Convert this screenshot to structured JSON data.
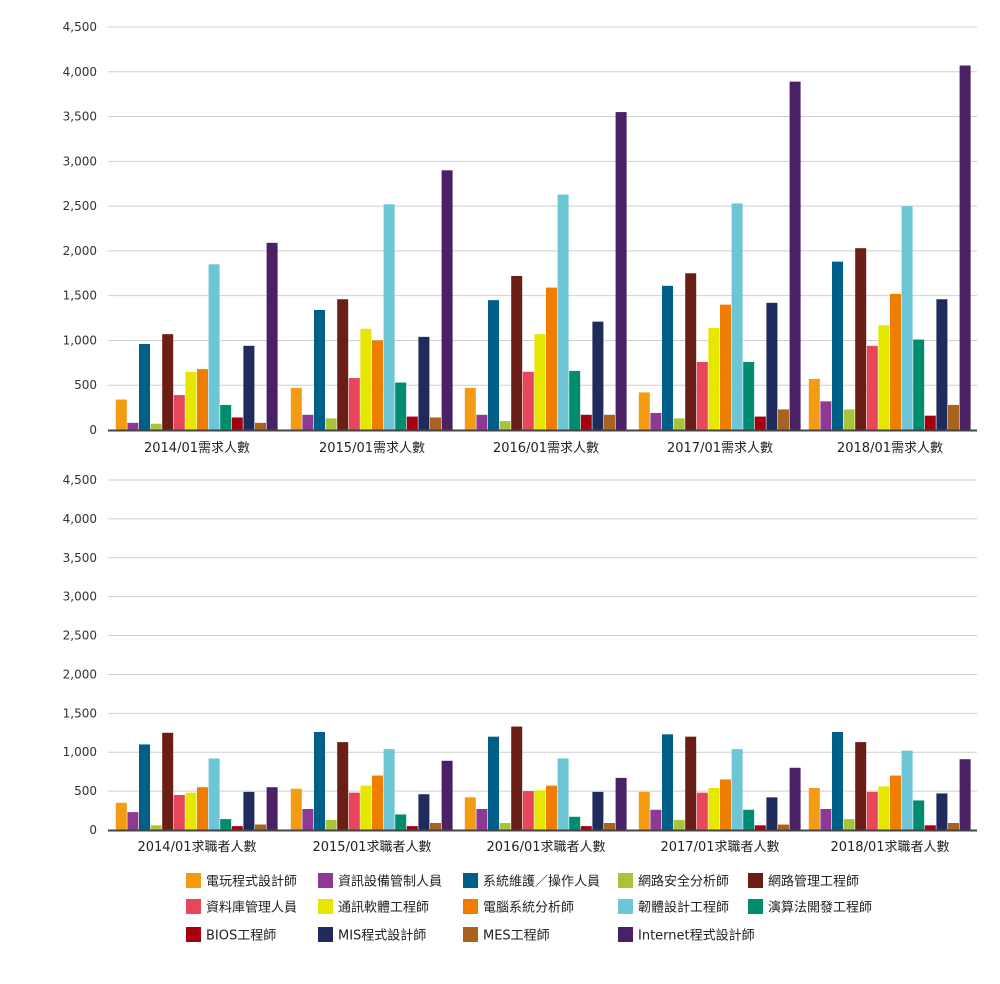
{
  "chart_data": [
    {
      "type": "bar",
      "categories": [
        "2014/01需求人數",
        "2015/01需求人數",
        "2016/01需求人數",
        "2017/01需求人數",
        "2018/01需求人數"
      ],
      "ylim": [
        0,
        4500
      ],
      "yticks": [
        0,
        500,
        1000,
        1500,
        2000,
        2500,
        3000,
        3500,
        4000,
        4500
      ],
      "ytick_labels": [
        "0",
        "500",
        "1,000",
        "1,500",
        "2,000",
        "2,500",
        "3,000",
        "3,500",
        "4,000",
        "4,500"
      ],
      "grid": true,
      "series": [
        {
          "name": "電玩程式設計師",
          "values": [
            340,
            470,
            470,
            420,
            570
          ]
        },
        {
          "name": "資訊設備管制人員",
          "values": [
            80,
            170,
            170,
            190,
            320
          ]
        },
        {
          "name": "系統維護／操作人員",
          "values": [
            960,
            1340,
            1450,
            1610,
            1880
          ]
        },
        {
          "name": "網路安全分析師",
          "values": [
            70,
            130,
            100,
            130,
            230
          ]
        },
        {
          "name": "網路管理工程師",
          "values": [
            1070,
            1460,
            1720,
            1750,
            2030
          ]
        },
        {
          "name": "資料庫管理人員",
          "values": [
            390,
            580,
            650,
            760,
            940
          ]
        },
        {
          "name": "通訊軟體工程師",
          "values": [
            650,
            1130,
            1070,
            1140,
            1170
          ]
        },
        {
          "name": "電腦系統分析師",
          "values": [
            680,
            1000,
            1590,
            1400,
            1520
          ]
        },
        {
          "name": "韌體設計工程師",
          "values": [
            1850,
            2520,
            2630,
            2530,
            2500
          ]
        },
        {
          "name": "演算法開發工程師",
          "values": [
            280,
            530,
            660,
            760,
            1010
          ]
        },
        {
          "name": "BIOS工程師",
          "values": [
            140,
            150,
            170,
            150,
            160
          ]
        },
        {
          "name": "MIS程式設計師",
          "values": [
            940,
            1040,
            1210,
            1420,
            1460
          ]
        },
        {
          "name": "MES工程師",
          "values": [
            80,
            140,
            170,
            230,
            280
          ]
        },
        {
          "name": "Internet程式設計師",
          "values": [
            2090,
            2900,
            3550,
            3890,
            4070
          ]
        }
      ]
    },
    {
      "type": "bar",
      "categories": [
        "2014/01求職者人數",
        "2015/01求職者人數",
        "2016/01求職者人數",
        "2017/01求職者人數",
        "2018/01求職者人數"
      ],
      "ylim": [
        0,
        4500
      ],
      "yticks": [
        0,
        500,
        1000,
        1500,
        2000,
        2500,
        3000,
        3500,
        4000,
        4500
      ],
      "ytick_labels": [
        "0",
        "500",
        "1,000",
        "1,500",
        "2,000",
        "2,500",
        "3,000",
        "3,500",
        "4,000",
        "4,500"
      ],
      "grid": true,
      "series": [
        {
          "name": "電玩程式設計師",
          "values": [
            350,
            530,
            420,
            490,
            540
          ]
        },
        {
          "name": "資訊設備管制人員",
          "values": [
            230,
            270,
            270,
            260,
            270
          ]
        },
        {
          "name": "系統維護／操作人員",
          "values": [
            1100,
            1260,
            1200,
            1230,
            1260
          ]
        },
        {
          "name": "網路安全分析師",
          "values": [
            60,
            130,
            90,
            130,
            140
          ]
        },
        {
          "name": "網路管理工程師",
          "values": [
            1250,
            1130,
            1330,
            1200,
            1130
          ]
        },
        {
          "name": "資料庫管理人員",
          "values": [
            450,
            480,
            500,
            480,
            490
          ]
        },
        {
          "name": "通訊軟體工程師",
          "values": [
            480,
            570,
            510,
            540,
            560
          ]
        },
        {
          "name": "電腦系統分析師",
          "values": [
            550,
            700,
            570,
            650,
            700
          ]
        },
        {
          "name": "韌體設計工程師",
          "values": [
            920,
            1040,
            920,
            1040,
            1020
          ]
        },
        {
          "name": "演算法開發工程師",
          "values": [
            140,
            200,
            170,
            260,
            380
          ]
        },
        {
          "name": "BIOS工程師",
          "values": [
            50,
            50,
            50,
            60,
            60
          ]
        },
        {
          "name": "MIS程式設計師",
          "values": [
            490,
            460,
            490,
            420,
            470
          ]
        },
        {
          "name": "MES工程師",
          "values": [
            70,
            90,
            90,
            70,
            90
          ]
        },
        {
          "name": "Internet程式設計師",
          "values": [
            550,
            890,
            670,
            800,
            910
          ]
        }
      ]
    }
  ],
  "legend": {
    "placement": "bottom",
    "items": [
      {
        "label": "電玩程式設計師",
        "color": "#F39C12"
      },
      {
        "label": "資訊設備管制人員",
        "color": "#8E3A92"
      },
      {
        "label": "系統維護／操作人員",
        "color": "#005F87"
      },
      {
        "label": "網路安全分析師",
        "color": "#A8C43A"
      },
      {
        "label": "網路管理工程師",
        "color": "#6B1E15"
      },
      {
        "label": "資料庫管理人員",
        "color": "#E8465A"
      },
      {
        "label": "通訊軟體工程師",
        "color": "#E6E600"
      },
      {
        "label": "電腦系統分析師",
        "color": "#EF7D00"
      },
      {
        "label": "韌體設計工程師",
        "color": "#6CC6D6"
      },
      {
        "label": "演算法開發工程師",
        "color": "#008C6E"
      },
      {
        "label": "BIOS工程師",
        "color": "#A50010"
      },
      {
        "label": "MIS程式設計師",
        "color": "#1F2B5C"
      },
      {
        "label": "MES工程師",
        "color": "#A8641E"
      },
      {
        "label": "Internet程式設計師",
        "color": "#4A2164"
      }
    ]
  }
}
